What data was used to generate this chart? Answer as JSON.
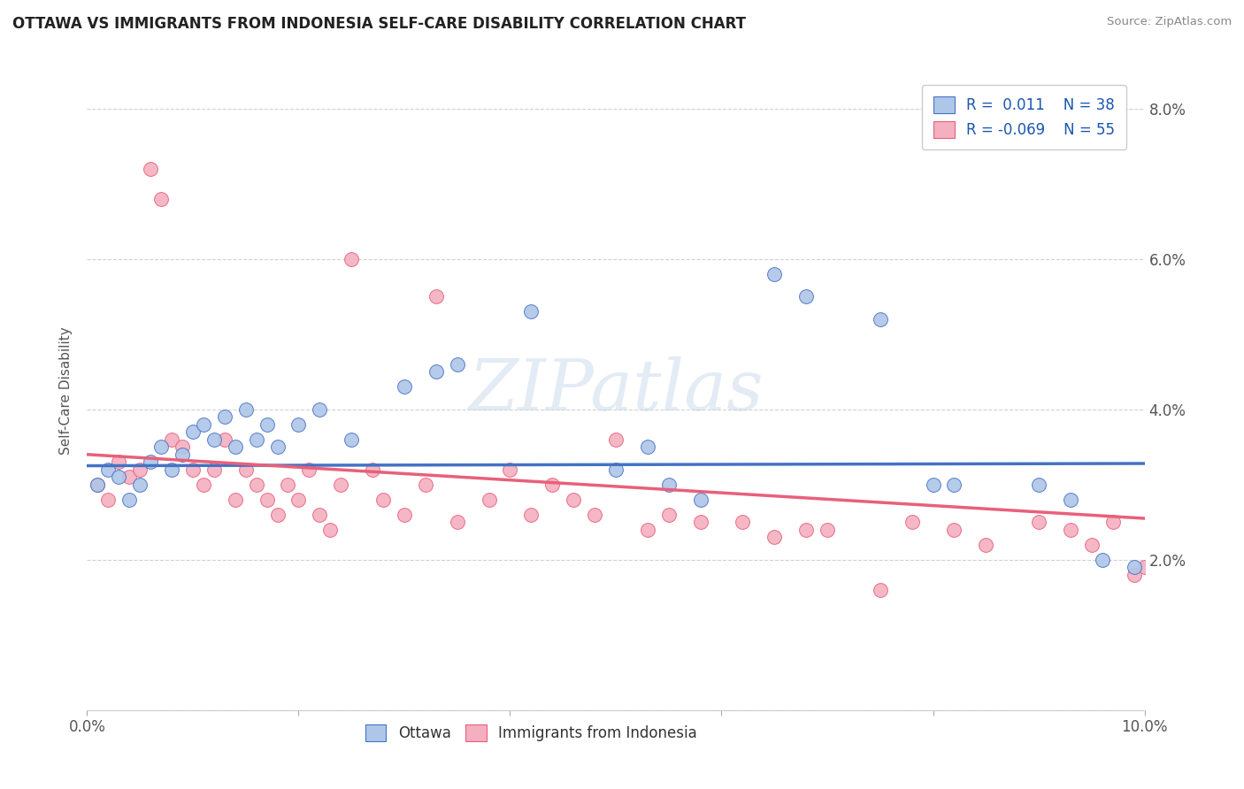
{
  "title": "OTTAWA VS IMMIGRANTS FROM INDONESIA SELF-CARE DISABILITY CORRELATION CHART",
  "source": "Source: ZipAtlas.com",
  "ylabel": "Self-Care Disability",
  "xlim": [
    0.0,
    0.1
  ],
  "ylim": [
    0.0,
    0.085
  ],
  "xticks": [
    0.0,
    0.02,
    0.04,
    0.06,
    0.08,
    0.1
  ],
  "yticks": [
    0.0,
    0.02,
    0.04,
    0.06,
    0.08
  ],
  "xtick_labels": [
    "0.0%",
    "",
    "",
    "",
    "",
    "10.0%"
  ],
  "ytick_labels_left": [
    "",
    "",
    "",
    "",
    ""
  ],
  "ytick_labels_right": [
    "",
    "2.0%",
    "4.0%",
    "6.0%",
    "8.0%"
  ],
  "ottawa_R": "0.011",
  "ottawa_N": "38",
  "indonesia_R": "-0.069",
  "indonesia_N": "55",
  "ottawa_color": "#aec6e8",
  "indonesia_color": "#f4afc0",
  "trendline_ottawa_color": "#4472c4",
  "trendline_indonesia_color": "#e8607a",
  "legend_R_color": "#1a56b0",
  "background_color": "#ffffff",
  "grid_color": "#cccccc",
  "watermark": "ZIPatlas",
  "ottawa_x": [
    0.001,
    0.002,
    0.003,
    0.004,
    0.005,
    0.006,
    0.007,
    0.008,
    0.009,
    0.01,
    0.011,
    0.012,
    0.013,
    0.014,
    0.015,
    0.016,
    0.017,
    0.018,
    0.02,
    0.022,
    0.025,
    0.03,
    0.033,
    0.035,
    0.042,
    0.05,
    0.053,
    0.055,
    0.058,
    0.065,
    0.068,
    0.075,
    0.08,
    0.082,
    0.09,
    0.093,
    0.096,
    0.099
  ],
  "ottawa_y": [
    0.03,
    0.032,
    0.031,
    0.028,
    0.03,
    0.033,
    0.035,
    0.032,
    0.034,
    0.037,
    0.038,
    0.036,
    0.039,
    0.035,
    0.04,
    0.036,
    0.038,
    0.035,
    0.038,
    0.04,
    0.036,
    0.043,
    0.045,
    0.046,
    0.053,
    0.032,
    0.035,
    0.03,
    0.028,
    0.058,
    0.055,
    0.052,
    0.03,
    0.03,
    0.03,
    0.028,
    0.02,
    0.019
  ],
  "indonesia_x": [
    0.001,
    0.002,
    0.003,
    0.004,
    0.005,
    0.006,
    0.007,
    0.008,
    0.009,
    0.01,
    0.011,
    0.012,
    0.013,
    0.014,
    0.015,
    0.016,
    0.017,
    0.018,
    0.019,
    0.02,
    0.021,
    0.022,
    0.023,
    0.024,
    0.025,
    0.027,
    0.028,
    0.03,
    0.032,
    0.033,
    0.035,
    0.038,
    0.04,
    0.042,
    0.044,
    0.046,
    0.048,
    0.05,
    0.053,
    0.055,
    0.058,
    0.062,
    0.065,
    0.068,
    0.07,
    0.075,
    0.078,
    0.082,
    0.085,
    0.09,
    0.093,
    0.095,
    0.097,
    0.099,
    0.1
  ],
  "indonesia_y": [
    0.03,
    0.028,
    0.033,
    0.031,
    0.032,
    0.072,
    0.068,
    0.036,
    0.035,
    0.032,
    0.03,
    0.032,
    0.036,
    0.028,
    0.032,
    0.03,
    0.028,
    0.026,
    0.03,
    0.028,
    0.032,
    0.026,
    0.024,
    0.03,
    0.06,
    0.032,
    0.028,
    0.026,
    0.03,
    0.055,
    0.025,
    0.028,
    0.032,
    0.026,
    0.03,
    0.028,
    0.026,
    0.036,
    0.024,
    0.026,
    0.025,
    0.025,
    0.023,
    0.024,
    0.024,
    0.016,
    0.025,
    0.024,
    0.022,
    0.025,
    0.024,
    0.022,
    0.025,
    0.018,
    0.019
  ]
}
